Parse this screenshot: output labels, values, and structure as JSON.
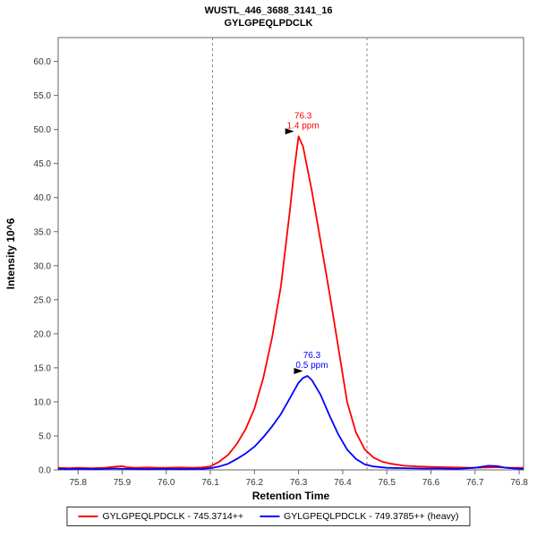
{
  "legend": {
    "entries": [
      {
        "label": "GYLGPEQLPDCLK - 745.3714++",
        "color": "#ff0000"
      },
      {
        "label": "GYLGPEQLPDCLK - 749.3785++ (heavy)",
        "color": "#0000ff"
      }
    ]
  },
  "chart_data": {
    "type": "line",
    "title": "WUSTL_446_3688_3141_16",
    "subtitle": "GYLGPEQLPDCLK",
    "xlabel": "Retention Time",
    "ylabel": "Intensity 10^6",
    "xlim": [
      75.755,
      76.81
    ],
    "ylim": [
      0,
      63.5
    ],
    "grid": false,
    "legend_position": "bottom",
    "x_ticks": [
      {
        "v": 75.8,
        "label": "75.8"
      },
      {
        "v": 75.9,
        "label": "75.9"
      },
      {
        "v": 76.0,
        "label": "76.0"
      },
      {
        "v": 76.1,
        "label": "76.1"
      },
      {
        "v": 76.2,
        "label": "76.2"
      },
      {
        "v": 76.3,
        "label": "76.3"
      },
      {
        "v": 76.4,
        "label": "76.4"
      },
      {
        "v": 76.5,
        "label": "76.5"
      },
      {
        "v": 76.6,
        "label": "76.6"
      },
      {
        "v": 76.7,
        "label": "76.7"
      },
      {
        "v": 76.8,
        "label": "76.8"
      }
    ],
    "y_ticks": [
      {
        "v": 0,
        "label": "0.0"
      },
      {
        "v": 5,
        "label": "5.0"
      },
      {
        "v": 10,
        "label": "10.0"
      },
      {
        "v": 15,
        "label": "15.0"
      },
      {
        "v": 20,
        "label": "20.0"
      },
      {
        "v": 25,
        "label": "25.0"
      },
      {
        "v": 30,
        "label": "30.0"
      },
      {
        "v": 35,
        "label": "35.0"
      },
      {
        "v": 40,
        "label": "40.0"
      },
      {
        "v": 45,
        "label": "45.0"
      },
      {
        "v": 50,
        "label": "50.0"
      },
      {
        "v": 55,
        "label": "55.0"
      },
      {
        "v": 60,
        "label": "60.0"
      }
    ],
    "integration_boundaries": [
      76.105,
      76.455
    ],
    "series": [
      {
        "name": "GYLGPEQLPDCLK - 745.3714++",
        "color": "#ff0000",
        "annotation": {
          "rt": "76.3",
          "ppm": "1.4 ppm",
          "apex_x": 76.3,
          "apex_y": 49.0
        },
        "points": [
          [
            75.755,
            0.3
          ],
          [
            75.78,
            0.25
          ],
          [
            75.8,
            0.3
          ],
          [
            75.83,
            0.25
          ],
          [
            75.86,
            0.3
          ],
          [
            75.88,
            0.45
          ],
          [
            75.9,
            0.55
          ],
          [
            75.91,
            0.4
          ],
          [
            75.93,
            0.3
          ],
          [
            75.96,
            0.35
          ],
          [
            75.98,
            0.3
          ],
          [
            76.0,
            0.3
          ],
          [
            76.03,
            0.35
          ],
          [
            76.06,
            0.3
          ],
          [
            76.08,
            0.35
          ],
          [
            76.1,
            0.5
          ],
          [
            76.12,
            1.2
          ],
          [
            76.14,
            2.2
          ],
          [
            76.16,
            3.8
          ],
          [
            76.18,
            6.0
          ],
          [
            76.2,
            9.0
          ],
          [
            76.22,
            13.5
          ],
          [
            76.24,
            19.5
          ],
          [
            76.26,
            27.0
          ],
          [
            76.28,
            38.0
          ],
          [
            76.29,
            44.0
          ],
          [
            76.3,
            49.0
          ],
          [
            76.31,
            47.5
          ],
          [
            76.33,
            41.0
          ],
          [
            76.35,
            33.5
          ],
          [
            76.37,
            26.0
          ],
          [
            76.39,
            18.0
          ],
          [
            76.41,
            10.0
          ],
          [
            76.43,
            5.5
          ],
          [
            76.45,
            3.0
          ],
          [
            76.47,
            1.8
          ],
          [
            76.49,
            1.2
          ],
          [
            76.51,
            0.9
          ],
          [
            76.54,
            0.6
          ],
          [
            76.57,
            0.5
          ],
          [
            76.6,
            0.45
          ],
          [
            76.63,
            0.4
          ],
          [
            76.66,
            0.35
          ],
          [
            76.69,
            0.3
          ],
          [
            76.72,
            0.35
          ],
          [
            76.75,
            0.4
          ],
          [
            76.78,
            0.3
          ],
          [
            76.81,
            0.3
          ]
        ]
      },
      {
        "name": "GYLGPEQLPDCLK - 749.3785++ (heavy)",
        "color": "#0000ff",
        "annotation": {
          "rt": "76.3",
          "ppm": "0.5 ppm",
          "apex_x": 76.32,
          "apex_y": 13.8
        },
        "points": [
          [
            75.755,
            0.15
          ],
          [
            75.78,
            0.1
          ],
          [
            75.8,
            0.15
          ],
          [
            75.84,
            0.1
          ],
          [
            75.88,
            0.2
          ],
          [
            75.92,
            0.15
          ],
          [
            75.96,
            0.1
          ],
          [
            76.0,
            0.15
          ],
          [
            76.04,
            0.1
          ],
          [
            76.08,
            0.15
          ],
          [
            76.1,
            0.25
          ],
          [
            76.12,
            0.5
          ],
          [
            76.14,
            0.9
          ],
          [
            76.16,
            1.6
          ],
          [
            76.18,
            2.4
          ],
          [
            76.2,
            3.4
          ],
          [
            76.22,
            4.8
          ],
          [
            76.24,
            6.4
          ],
          [
            76.26,
            8.2
          ],
          [
            76.28,
            10.5
          ],
          [
            76.3,
            12.8
          ],
          [
            76.31,
            13.5
          ],
          [
            76.32,
            13.8
          ],
          [
            76.33,
            13.2
          ],
          [
            76.35,
            11.0
          ],
          [
            76.37,
            8.0
          ],
          [
            76.39,
            5.2
          ],
          [
            76.41,
            3.0
          ],
          [
            76.43,
            1.6
          ],
          [
            76.45,
            0.8
          ],
          [
            76.47,
            0.5
          ],
          [
            76.5,
            0.3
          ],
          [
            76.54,
            0.25
          ],
          [
            76.58,
            0.2
          ],
          [
            76.62,
            0.2
          ],
          [
            76.66,
            0.15
          ],
          [
            76.7,
            0.3
          ],
          [
            76.73,
            0.6
          ],
          [
            76.75,
            0.55
          ],
          [
            76.77,
            0.3
          ],
          [
            76.79,
            0.2
          ],
          [
            76.81,
            0.15
          ]
        ]
      }
    ]
  }
}
